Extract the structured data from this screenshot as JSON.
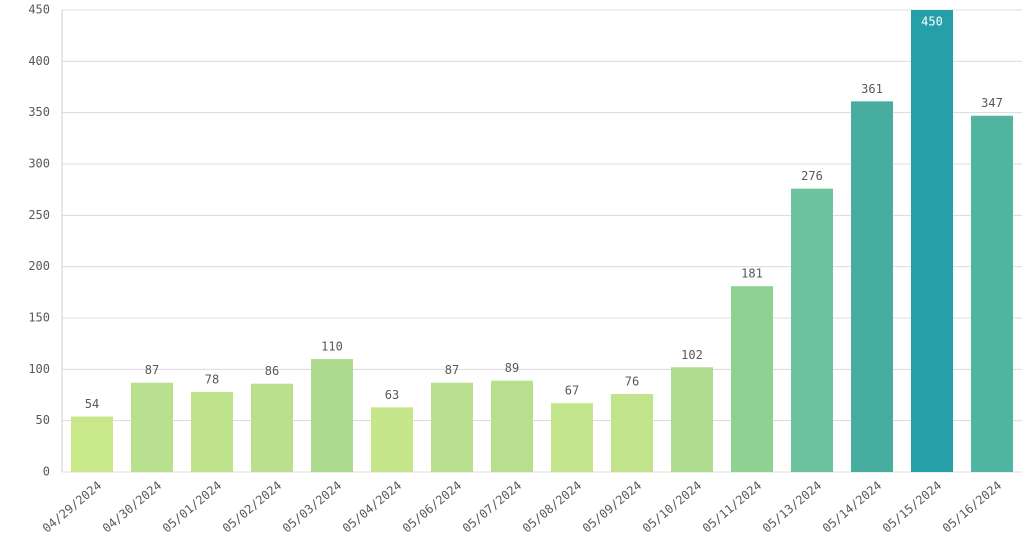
{
  "chart_data": {
    "type": "bar",
    "categories": [
      "04/29/2024",
      "04/30/2024",
      "05/01/2024",
      "05/02/2024",
      "05/03/2024",
      "05/04/2024",
      "05/06/2024",
      "05/07/2024",
      "05/08/2024",
      "05/09/2024",
      "05/10/2024",
      "05/11/2024",
      "05/13/2024",
      "05/14/2024",
      "05/15/2024",
      "05/16/2024"
    ],
    "values": [
      54,
      87,
      78,
      86,
      110,
      63,
      87,
      89,
      67,
      76,
      102,
      181,
      276,
      361,
      450,
      347
    ],
    "colors": [
      "#c8e88a",
      "#b9e08e",
      "#bfe38c",
      "#bae08e",
      "#acdb8f",
      "#c5e68b",
      "#b9e08e",
      "#b8df8e",
      "#c3e58b",
      "#c0e38c",
      "#b0dc8f",
      "#8fd093",
      "#6bc29c",
      "#47ad9f",
      "#25a0a8",
      "#4fb4a0"
    ],
    "ylim": [
      0,
      450
    ],
    "yticks": [
      0,
      50,
      100,
      150,
      200,
      250,
      300,
      350,
      400,
      450
    ],
    "grid": true
  }
}
